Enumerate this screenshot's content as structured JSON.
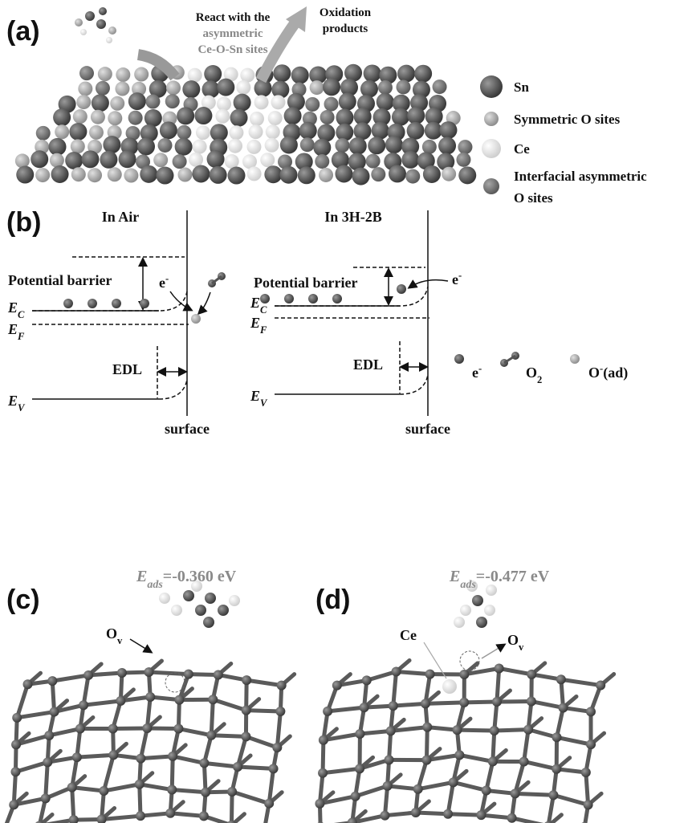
{
  "panel_a": {
    "label": "(a)",
    "arrow_in": [
      "React with the",
      "asymmetric",
      "Ce-O-Sn sites"
    ],
    "arrow_out": [
      "Oxidation",
      "products"
    ],
    "legend": [
      {
        "lines": [
          "Sn"
        ]
      },
      {
        "lines": [
          "Symmetric O sites"
        ]
      },
      {
        "lines": [
          "Ce"
        ]
      },
      {
        "lines": [
          "Interfacial asymmetric",
          "O sites"
        ]
      }
    ]
  },
  "panel_b": {
    "label": "(b)",
    "diagrams": [
      {
        "title": "In Air",
        "barrier": "Potential barrier",
        "electron": {
          "main": "e",
          "sup": "-"
        },
        "ec": {
          "main": "E",
          "sub": "C"
        },
        "ef": {
          "main": "E",
          "sub": "F"
        },
        "ev": {
          "main": "E",
          "sub": "V"
        },
        "edl": "EDL",
        "surface": "surface"
      },
      {
        "title": "In 3H-2B",
        "barrier": "Potential barrier",
        "electron": {
          "main": "e",
          "sup": "-"
        },
        "ec": {
          "main": "E",
          "sub": "C"
        },
        "ef": {
          "main": "E",
          "sub": "F"
        },
        "ev": {
          "main": "E",
          "sub": "V"
        },
        "edl": "EDL",
        "surface": "surface"
      }
    ],
    "legend": [
      {
        "main": "e",
        "sup": "-"
      },
      {
        "main": "O",
        "sub": "2"
      },
      {
        "main": "O",
        "sup": "-",
        "rest": "(ad)"
      }
    ]
  },
  "panel_c": {
    "label": "(c)",
    "energy": {
      "main": "E",
      "sub": "ads",
      "rest": "=-0.360 eV"
    },
    "vacancy": {
      "main": "O",
      "sub": "v"
    }
  },
  "panel_d": {
    "label": "(d)",
    "energy": {
      "main": "E",
      "sub": "ads",
      "rest": "=-0.477 eV"
    },
    "ce": "Ce",
    "vacancy": {
      "main": "O",
      "sub": "v"
    }
  }
}
